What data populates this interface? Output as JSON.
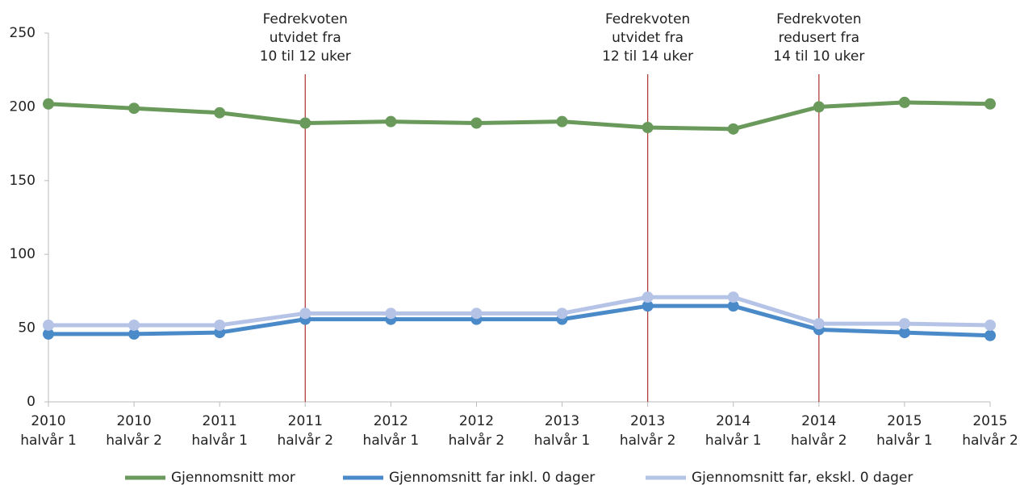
{
  "chart_data": {
    "type": "line",
    "categories": [
      [
        "2010",
        "halvår 1"
      ],
      [
        "2010",
        "halvår 2"
      ],
      [
        "2011",
        "halvår 1"
      ],
      [
        "2011",
        "halvår 2"
      ],
      [
        "2012",
        "halvår 1"
      ],
      [
        "2012",
        "halvår 2"
      ],
      [
        "2013",
        "halvår 1"
      ],
      [
        "2013",
        "halvår 2"
      ],
      [
        "2014",
        "halvår 1"
      ],
      [
        "2014",
        "halvår 2"
      ],
      [
        "2015",
        "halvår 1"
      ],
      [
        "2015",
        "halvår 2"
      ]
    ],
    "series": [
      {
        "name": "Gjennomsnitt mor",
        "color": "#6a9a5b",
        "values": [
          202,
          199,
          196,
          189,
          190,
          189,
          190,
          186,
          185,
          200,
          203,
          202
        ]
      },
      {
        "name": "Gjennomsnitt far inkl. 0 dager",
        "color": "#4a8ac9",
        "values": [
          46,
          46,
          47,
          56,
          56,
          56,
          56,
          65,
          65,
          49,
          47,
          45
        ]
      },
      {
        "name": "Gjennomsnitt far, ekskl. 0 dager",
        "color": "#b4c3e6",
        "values": [
          52,
          52,
          52,
          60,
          60,
          60,
          60,
          71,
          71,
          53,
          53,
          52
        ]
      }
    ],
    "ylim": [
      0,
      250
    ],
    "yticks": [
      0,
      50,
      100,
      150,
      200,
      250
    ],
    "grid": false,
    "legend": "bottom",
    "annotations": [
      {
        "category": [
          "2011",
          "halvår 2"
        ],
        "text": [
          "Fedrekvoten",
          "utvidet fra",
          "10 til 12 uker"
        ],
        "color": "#b0403c"
      },
      {
        "category": [
          "2013",
          "halvår 2"
        ],
        "text": [
          "Fedrekvoten",
          "utvidet fra",
          "12 til 14 uker"
        ],
        "color": "#b0403c"
      },
      {
        "category": [
          "2014",
          "halvår 2"
        ],
        "text": [
          "Fedrekvoten",
          "redusert fra",
          "14 til 10 uker"
        ],
        "color": "#b0403c"
      }
    ]
  }
}
